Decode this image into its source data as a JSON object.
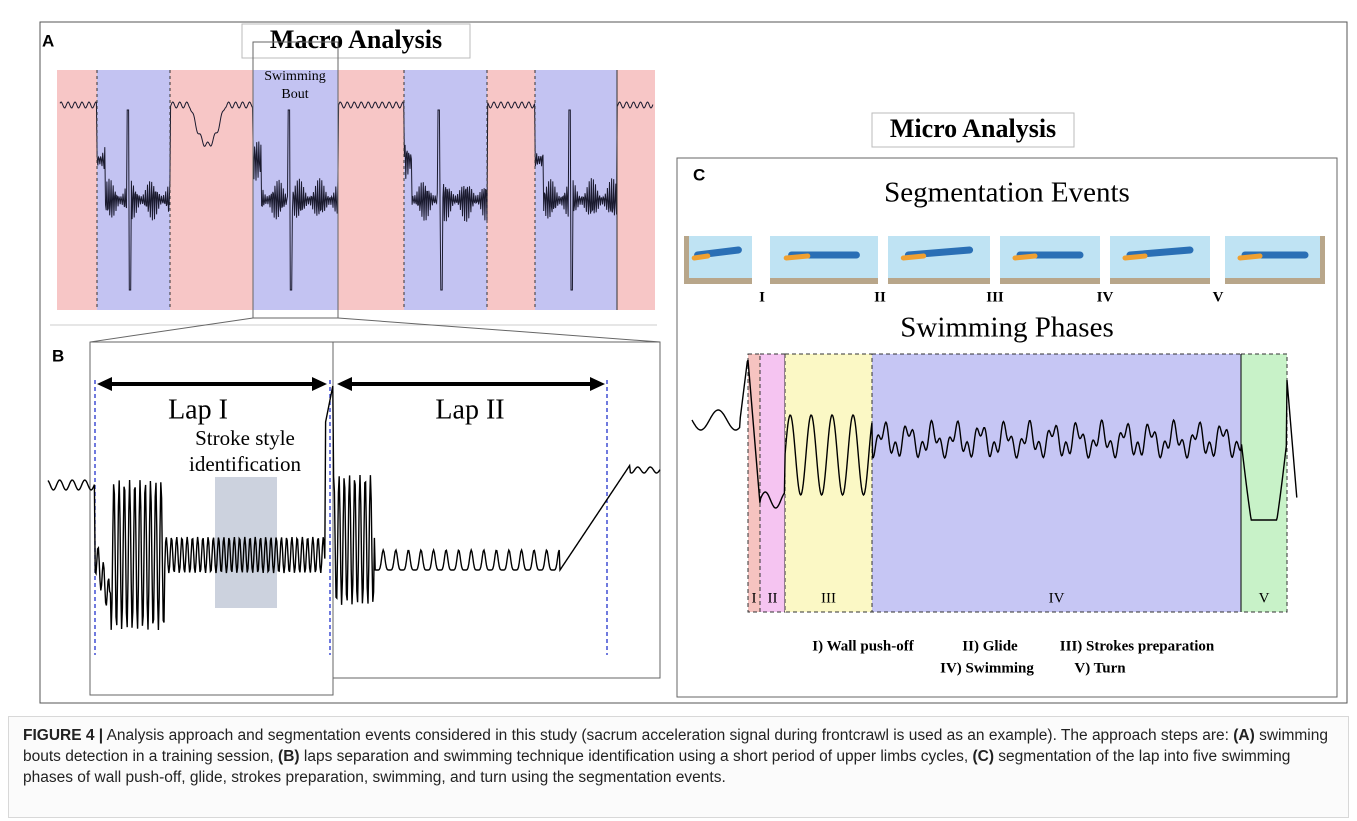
{
  "panel_a": {
    "label": "A",
    "title": "Macro Analysis",
    "bout_label": [
      "Swimming",
      "Bout"
    ]
  },
  "panel_b": {
    "label": "B",
    "laps": [
      "Lap I",
      "Lap II"
    ],
    "stroke_label": [
      "Stroke style",
      "identification"
    ]
  },
  "panel_c": {
    "label": "C",
    "title": "Micro Analysis",
    "events_title": "Segmentation Events",
    "events": [
      "I",
      "II",
      "III",
      "IV",
      "V"
    ],
    "phases_title": "Swimming Phases",
    "phases": [
      "I",
      "II",
      "III",
      "IV",
      "V"
    ],
    "legend_line_1": [
      "I) Wall push-off",
      "II) Glide",
      "III) Strokes preparation"
    ],
    "legend_line_2": [
      "IV) Swimming",
      "V) Turn"
    ]
  },
  "caption": {
    "label": "FIGURE 4 |",
    "segments": [
      "Analysis approach and segmentation events considered in this study (sacrum acceleration signal during frontcrawl is used as an example). The approach steps are: ",
      "(A)",
      " swimming bouts detection in a training session, ",
      "(B)",
      " laps separation and swimming technique identification using a short period of upper limbs cycles, ",
      "(C)",
      " segmentation of the lap into five swimming phases of wall push-off, glide, strokes preparation, swimming, and turn using the segmentation events."
    ]
  }
}
